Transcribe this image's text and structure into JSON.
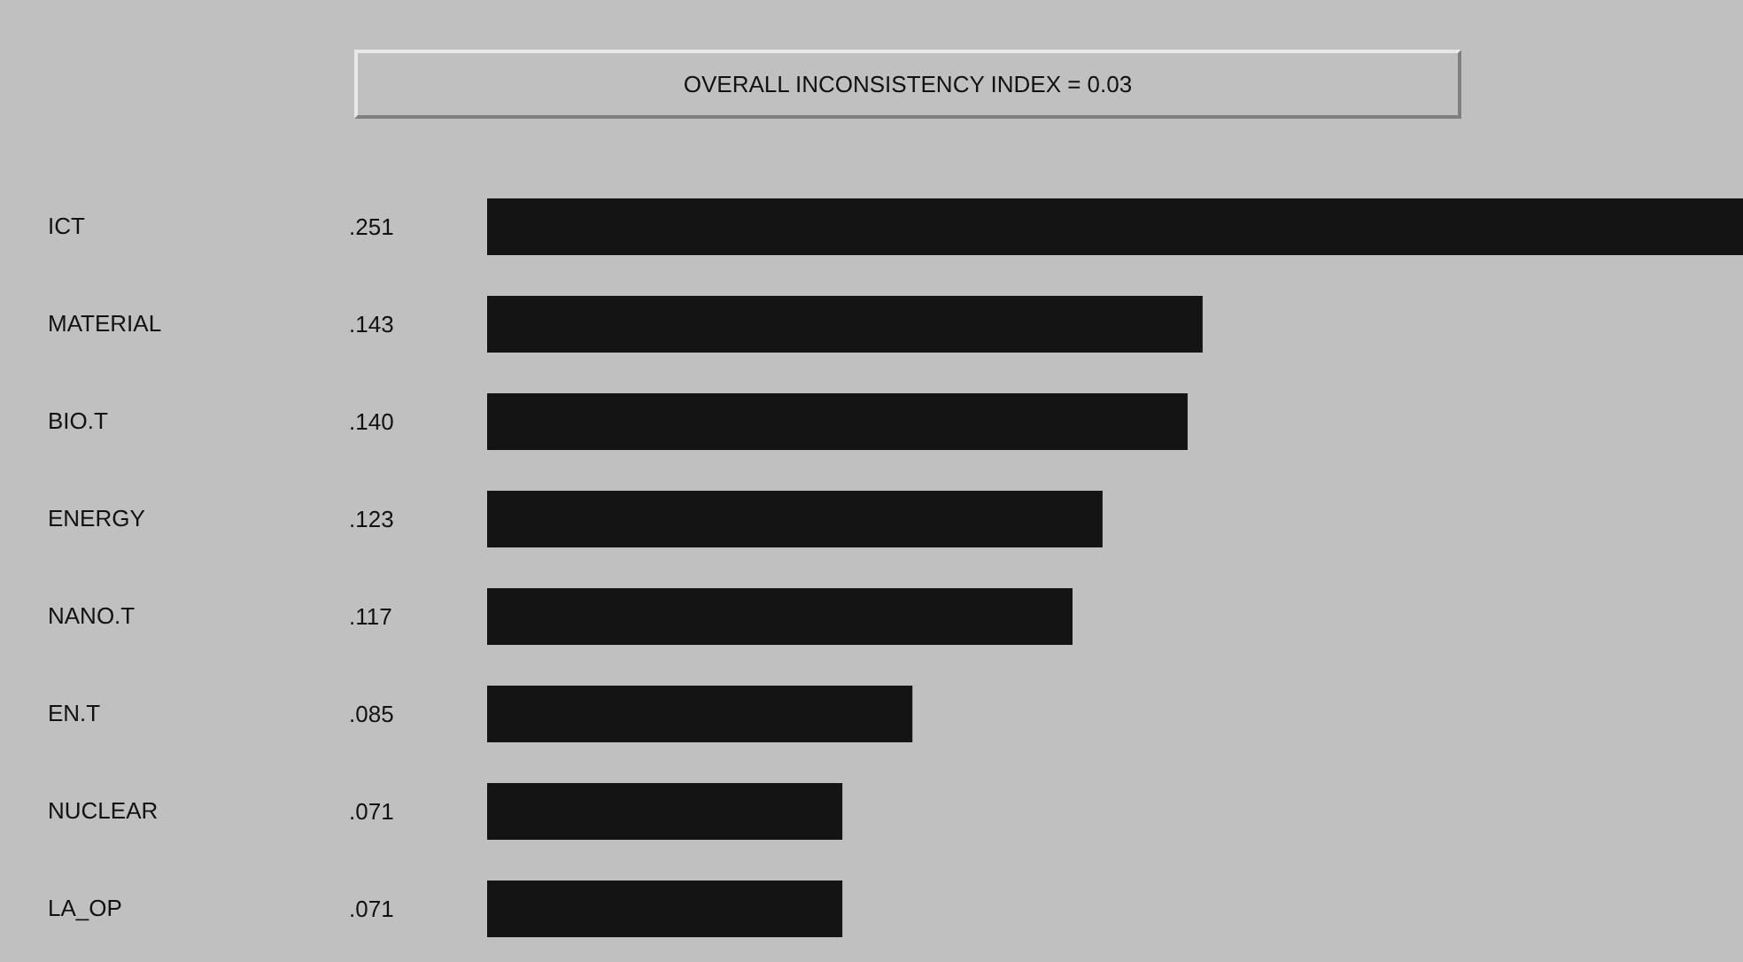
{
  "chart_data": {
    "type": "bar",
    "orientation": "horizontal",
    "title": "OVERALL INCONSISTENCY INDEX =  0.03",
    "categories": [
      "ICT",
      "MATERIAL",
      "BIO.T",
      "ENERGY",
      "NANO.T",
      "EN.T",
      "NUCLEAR",
      "LA_OP"
    ],
    "values": [
      0.251,
      0.143,
      0.14,
      0.123,
      0.117,
      0.085,
      0.071,
      0.071
    ],
    "value_labels": [
      ".251",
      ".143",
      ".140",
      ".123",
      ".117",
      ".085",
      ".071",
      ".071"
    ],
    "color": "#141414"
  }
}
